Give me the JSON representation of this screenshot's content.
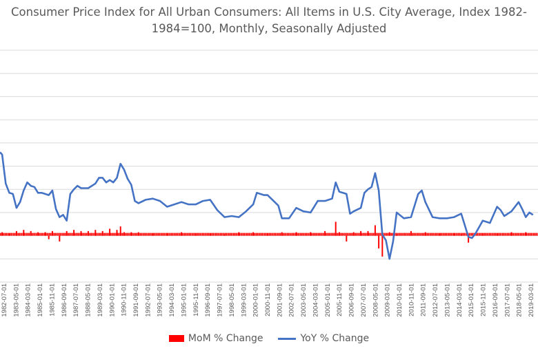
{
  "chart_data": {
    "type": "bar+line",
    "title_line1": "Consumer Price Index for All Urban Consumers: All Items in U.S. City Average, Index 1982-",
    "title_line2": "1984=100, Monthly, Seasonally Adjusted",
    "x_tick_labels": [
      "1982-07-01",
      "1983-05-01",
      "1984-03-01",
      "1985-01-01",
      "1985-11-01",
      "1986-09-01",
      "1987-07-01",
      "1988-05-01",
      "1989-03-01",
      "1990-01-01",
      "1990-11-01",
      "1991-09-01",
      "1992-07-01",
      "1993-05-01",
      "1994-03-01",
      "1995-01-01",
      "1995-11-01",
      "1996-09-01",
      "1997-07-01",
      "1998-05-01",
      "1999-03-01",
      "2000-01-01",
      "2000-11-01",
      "2001-09-01",
      "2002-07-01",
      "2003-05-01",
      "2004-03-01",
      "2005-01-01",
      "2005-11-01",
      "2006-09-01",
      "2007-07-01",
      "2008-05-01",
      "2009-03-01",
      "2010-01-01",
      "2010-11-01",
      "2011-09-01",
      "2012-07-01",
      "2013-05-01",
      "2014-03-01",
      "2015-01-01",
      "2015-11-01",
      "2016-09-01",
      "2017-07-01",
      "2018-05-01",
      "2019-03-01"
    ],
    "y_axis": {
      "min": -4,
      "max": 16,
      "gridlines": [
        -4,
        -2,
        0,
        2,
        4,
        6,
        8,
        10,
        12,
        14,
        16
      ],
      "tick_labels_visible": false
    },
    "series": [
      {
        "name": "YoY % Change",
        "kind": "line",
        "color": "#4472C4",
        "x": [
          1982.5,
          1982.75,
          1983.0,
          1983.25,
          1983.5,
          1983.75,
          1984.0,
          1984.25,
          1984.5,
          1984.75,
          1985.0,
          1985.25,
          1985.5,
          1985.75,
          1986.0,
          1986.25,
          1986.5,
          1986.75,
          1987.0,
          1987.25,
          1987.5,
          1987.75,
          1988.0,
          1988.5,
          1989.0,
          1989.25,
          1989.5,
          1989.75,
          1990.0,
          1990.25,
          1990.5,
          1990.75,
          1991.0,
          1991.25,
          1991.5,
          1991.75,
          1992.0,
          1992.5,
          1993.0,
          1993.5,
          1994.0,
          1994.5,
          1995.0,
          1995.5,
          1996.0,
          1996.5,
          1997.0,
          1997.5,
          1998.0,
          1998.5,
          1999.0,
          1999.5,
          2000.0,
          2000.25,
          2000.5,
          2000.75,
          2001.0,
          2001.5,
          2001.75,
          2002.0,
          2002.5,
          2003.0,
          2003.5,
          2004.0,
          2004.5,
          2005.0,
          2005.5,
          2005.75,
          2006.0,
          2006.5,
          2006.75,
          2007.0,
          2007.5,
          2007.75,
          2008.0,
          2008.25,
          2008.5,
          2008.75,
          2009.0,
          2009.25,
          2009.5,
          2009.75,
          2010.0,
          2010.5,
          2011.0,
          2011.5,
          2011.75,
          2012.0,
          2012.5,
          2013.0,
          2013.5,
          2014.0,
          2014.5,
          2015.0,
          2015.25,
          2015.5,
          2016.0,
          2016.5,
          2017.0,
          2017.25,
          2017.5,
          2018.0,
          2018.5,
          2018.75,
          2019.0,
          2019.25,
          2019.5
        ],
        "values": [
          7.0,
          4.5,
          3.7,
          3.6,
          2.4,
          2.9,
          3.9,
          4.6,
          4.3,
          4.2,
          3.7,
          3.7,
          3.6,
          3.5,
          3.9,
          2.3,
          1.6,
          1.8,
          1.3,
          3.6,
          4.0,
          4.3,
          4.1,
          4.1,
          4.5,
          5.0,
          5.0,
          4.6,
          4.8,
          4.6,
          5.0,
          6.2,
          5.7,
          4.9,
          4.4,
          3.0,
          2.8,
          3.1,
          3.2,
          3.0,
          2.5,
          2.7,
          2.9,
          2.7,
          2.7,
          3.0,
          3.1,
          2.2,
          1.6,
          1.7,
          1.6,
          2.1,
          2.7,
          3.7,
          3.6,
          3.5,
          3.5,
          2.9,
          2.6,
          1.5,
          1.5,
          2.4,
          2.1,
          2.0,
          3.0,
          3.0,
          3.2,
          4.6,
          3.8,
          3.6,
          1.9,
          2.1,
          2.4,
          3.7,
          4.0,
          4.2,
          5.4,
          3.9,
          0.1,
          -0.4,
          -2.0,
          -0.5,
          2.0,
          1.5,
          1.6,
          3.6,
          3.9,
          2.9,
          1.6,
          1.5,
          1.5,
          1.6,
          1.9,
          -0.1,
          -0.2,
          0.2,
          1.3,
          1.1,
          2.5,
          2.2,
          1.7,
          2.1,
          2.9,
          2.3,
          1.6,
          2.0,
          1.8
        ],
        "start_value": 7.2
      },
      {
        "name": "MoM % Change",
        "kind": "bar",
        "color": "#FF0000",
        "x": [
          1982.5,
          1983.0,
          1983.5,
          1984.0,
          1984.5,
          1985.0,
          1985.5,
          1985.75,
          1986.0,
          1986.5,
          1987.0,
          1987.5,
          1988.0,
          1988.5,
          1989.0,
          1989.5,
          1990.0,
          1990.5,
          1990.75,
          1991.0,
          1991.5,
          1992.0,
          1993.0,
          1994.0,
          1995.0,
          1996.0,
          1997.0,
          1998.0,
          1999.0,
          2000.0,
          2001.0,
          2002.0,
          2003.0,
          2004.0,
          2005.0,
          2005.75,
          2006.0,
          2006.5,
          2007.0,
          2007.5,
          2008.0,
          2008.5,
          2008.75,
          2009.0,
          2009.5,
          2010.0,
          2011.0,
          2012.0,
          2013.0,
          2014.0,
          2014.5,
          2015.0,
          2016.0,
          2017.0,
          2018.0,
          2019.0
        ],
        "values": [
          0.3,
          0.2,
          0.4,
          0.5,
          0.4,
          0.3,
          0.3,
          -0.3,
          0.4,
          -0.5,
          0.4,
          0.5,
          0.4,
          0.4,
          0.5,
          0.4,
          0.6,
          0.5,
          0.8,
          0.3,
          0.3,
          0.3,
          0.2,
          0.2,
          0.3,
          0.2,
          0.2,
          0.1,
          0.3,
          0.3,
          0.2,
          0.3,
          0.3,
          0.3,
          0.4,
          1.2,
          0.3,
          -0.5,
          0.3,
          0.4,
          0.4,
          0.9,
          -1.1,
          -1.8,
          0.3,
          0.1,
          0.4,
          0.3,
          0.2,
          0.2,
          0.1,
          -0.6,
          0.2,
          0.2,
          0.3,
          0.3
        ]
      }
    ],
    "legend": {
      "placement": "bottom",
      "items": [
        {
          "name": "MoM % Change",
          "color": "#FF0000",
          "shape": "bar"
        },
        {
          "name": "YoY % Change",
          "color": "#4472C4",
          "shape": "line"
        }
      ]
    },
    "grid": true
  }
}
